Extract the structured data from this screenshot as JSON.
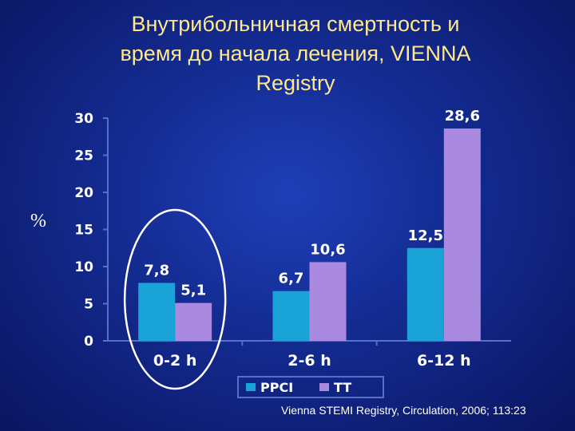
{
  "slide": {
    "title_lines": [
      "Внутрибольничная смертность и",
      "время до начала лечения, VIENNA",
      "Registry"
    ],
    "citation": "Vienna STEMI Registry, Circulation, 2006; 113:23"
  },
  "chart_data": {
    "type": "bar",
    "title": "",
    "xlabel": "",
    "ylabel": "%",
    "categories": [
      "0-2 h",
      "2-6 h",
      "6-12 h"
    ],
    "series": [
      {
        "name": "PPCI",
        "values": [
          7.8,
          6.7,
          12.5
        ],
        "labels": [
          "7,8",
          "6,7",
          "12,5"
        ],
        "color": "#1aa3d6"
      },
      {
        "name": "TT",
        "values": [
          5.1,
          10.6,
          28.6
        ],
        "labels": [
          "5,1",
          "10,6",
          "28,6"
        ],
        "color": "#a98ae0"
      }
    ],
    "ylim": [
      0,
      30
    ],
    "yticks": [
      0,
      5,
      10,
      15,
      20,
      25,
      30
    ],
    "grid": false,
    "legend": "bottom",
    "highlight": "0-2 h"
  },
  "colors": {
    "title": "#ffe88a",
    "axis": "#5570c8",
    "text": "#ffffff",
    "highlight_ellipse": "#ffffff"
  }
}
